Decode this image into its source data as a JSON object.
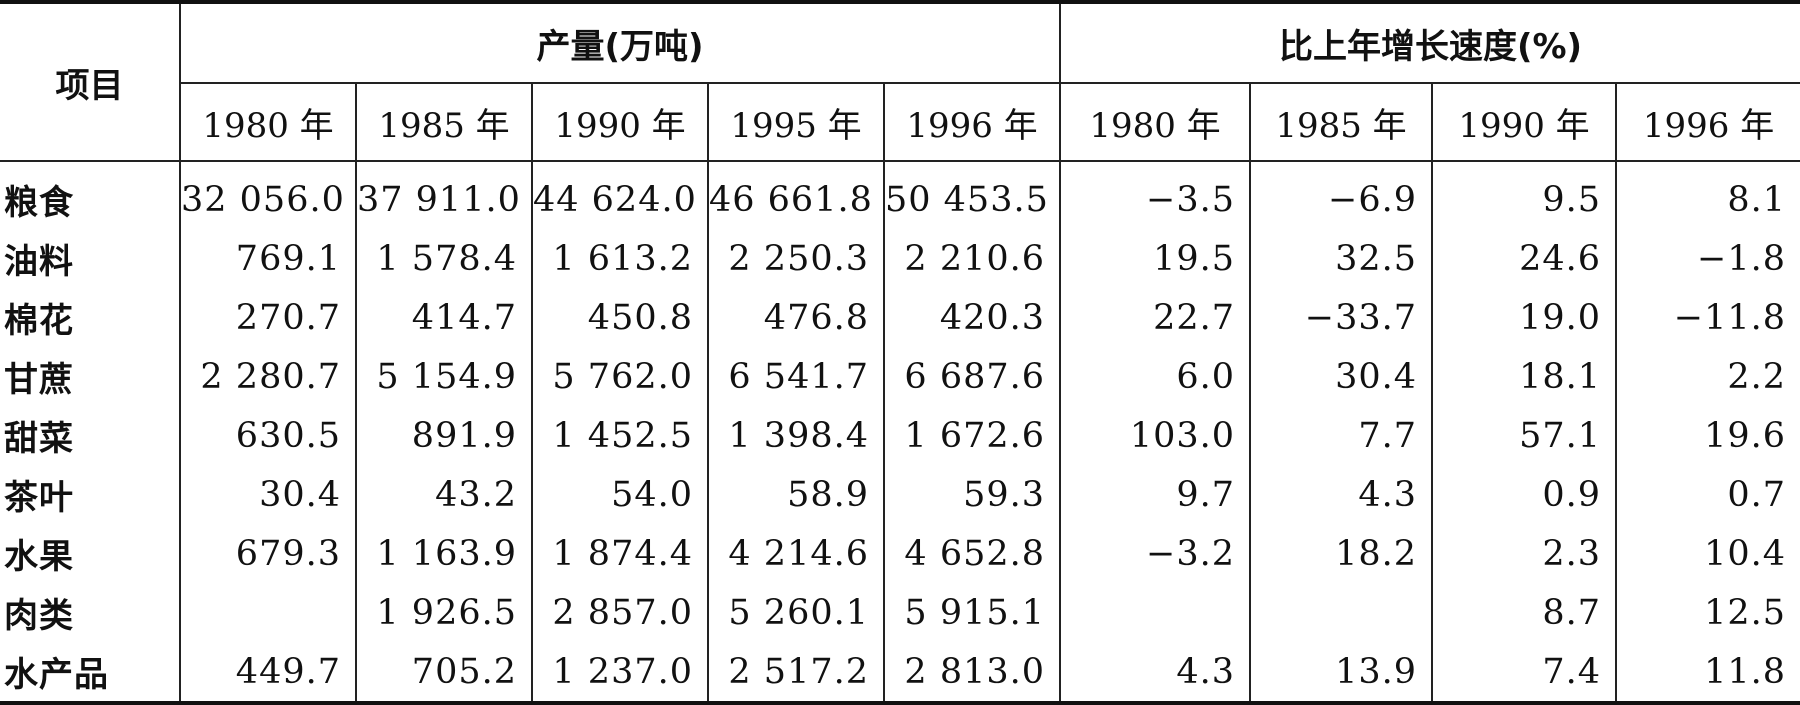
{
  "header": {
    "item_label": "项目",
    "group_output": "产量(万吨)",
    "group_growth": "比上年增长速度(%)",
    "output_years": [
      "1980 年",
      "1985 年",
      "1990 年",
      "1995 年",
      "1996 年"
    ],
    "growth_years": [
      "1980 年",
      "1985 年",
      "1990 年",
      "1996 年"
    ]
  },
  "rows": [
    {
      "name": "粮食",
      "output": [
        "32 056.0",
        "37 911.0",
        "44 624.0",
        "46 661.8",
        "50 453.5"
      ],
      "growth": [
        "−3.5",
        "−6.9",
        "9.5",
        "8.1"
      ]
    },
    {
      "name": "油料",
      "output": [
        "769.1",
        "1 578.4",
        "1 613.2",
        "2 250.3",
        "2 210.6"
      ],
      "growth": [
        "19.5",
        "32.5",
        "24.6",
        "−1.8"
      ]
    },
    {
      "name": "棉花",
      "output": [
        "270.7",
        "414.7",
        "450.8",
        "476.8",
        "420.3"
      ],
      "growth": [
        "22.7",
        "−33.7",
        "19.0",
        "−11.8"
      ]
    },
    {
      "name": "甘蔗",
      "output": [
        "2 280.7",
        "5 154.9",
        "5 762.0",
        "6 541.7",
        "6 687.6"
      ],
      "growth": [
        "6.0",
        "30.4",
        "18.1",
        "2.2"
      ]
    },
    {
      "name": "甜菜",
      "output": [
        "630.5",
        "891.9",
        "1 452.5",
        "1 398.4",
        "1 672.6"
      ],
      "growth": [
        "103.0",
        "7.7",
        "57.1",
        "19.6"
      ]
    },
    {
      "name": "茶叶",
      "output": [
        "30.4",
        "43.2",
        "54.0",
        "58.9",
        "59.3"
      ],
      "growth": [
        "9.7",
        "4.3",
        "0.9",
        "0.7"
      ]
    },
    {
      "name": "水果",
      "output": [
        "679.3",
        "1 163.9",
        "1 874.4",
        "4 214.6",
        "4 652.8"
      ],
      "growth": [
        "−3.2",
        "18.2",
        "2.3",
        "10.4"
      ]
    },
    {
      "name": "肉类",
      "output": [
        "",
        "1 926.5",
        "2 857.0",
        "5 260.1",
        "5 915.1"
      ],
      "growth": [
        "",
        "",
        "8.7",
        "12.5"
      ]
    },
    {
      "name": "水产品",
      "output": [
        "449.7",
        "705.2",
        "1 237.0",
        "2 517.2",
        "2 813.0"
      ],
      "growth": [
        "4.3",
        "13.9",
        "7.4",
        "11.8"
      ]
    }
  ]
}
